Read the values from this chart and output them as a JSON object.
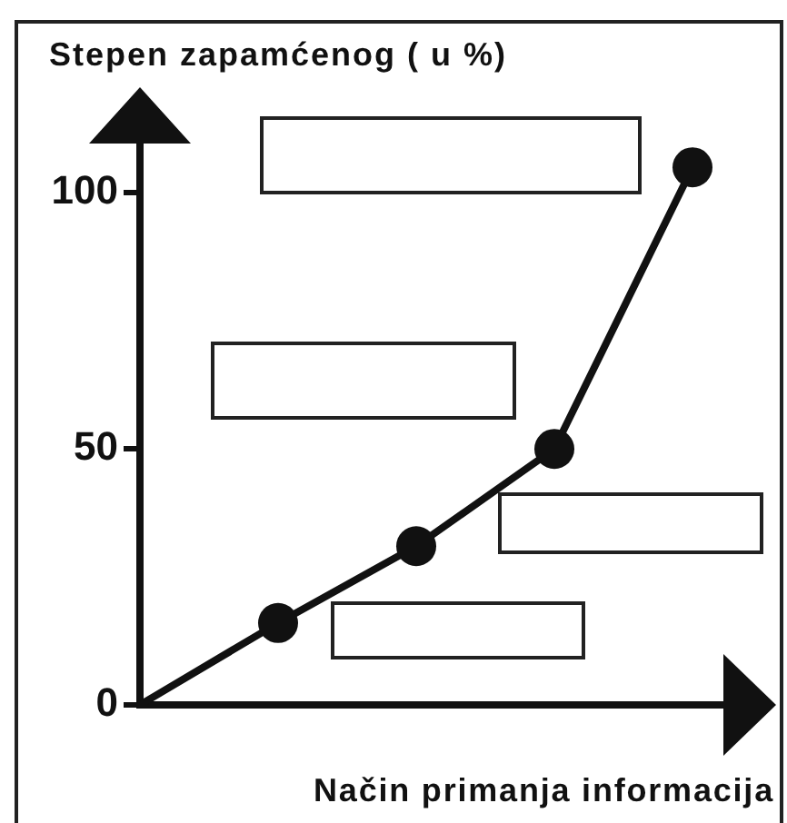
{
  "chart_data": {
    "type": "line",
    "ylabel": "Stepen zapamćenog ( u %)",
    "xlabel": "Način primanja informacija",
    "categories": [
      null,
      null,
      null,
      null,
      null
    ],
    "values": [
      0,
      16,
      31,
      50,
      105
    ],
    "color": "#111111",
    "ylim": [
      0,
      110
    ],
    "yticks": [
      0,
      50,
      100
    ],
    "marker": "circle",
    "line_style": "solid",
    "tick_labels": "y"
  }
}
